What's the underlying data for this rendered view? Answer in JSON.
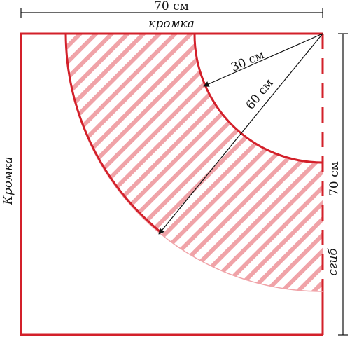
{
  "labels": {
    "top_dimension": "70 см",
    "top_edge": "кромка",
    "left_edge": "Кромка",
    "right_dimension": "70 см",
    "fold": "сгиб",
    "inner_radius": "30 см",
    "outer_radius": "60 см"
  },
  "colors": {
    "outline": "#d3202a",
    "hatch": "#f0a3a8",
    "dimension": "#111111"
  }
}
